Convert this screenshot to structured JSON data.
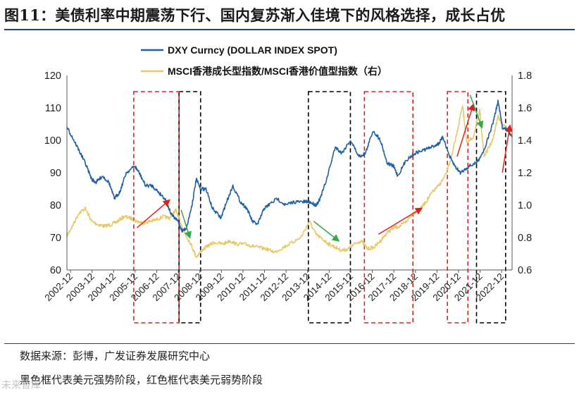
{
  "header": {
    "title": "图11：美债利率中期震荡下行、国内复苏渐入佳境下的风格选择，成长占优"
  },
  "footer": {
    "source": "数据来源：彭博，广发证券发展研究中心",
    "note": "黑色框代表美元强势阶段，红色框代表美元弱势阶段",
    "watermark": "未来智库"
  },
  "colors": {
    "dxy": "#1f5fa6",
    "msci": "#e8c866",
    "strong_box": "#000000",
    "weak_box": "#e0201c",
    "arrow_red": "#e0201c",
    "arrow_green": "#36a84a",
    "rule": "#1f3d7a"
  },
  "chart_data": {
    "type": "line",
    "title": "",
    "xlabel": "",
    "ylabel_left": "",
    "ylabel_right": "",
    "x_range": [
      2002.75,
      2023.4
    ],
    "ylim_left": [
      60,
      120
    ],
    "ylim_right": [
      0.6,
      1.8
    ],
    "left_ticks": [
      "120",
      "110",
      "100",
      "90",
      "80",
      "70",
      "60"
    ],
    "right_ticks": [
      "1.8",
      "1.6",
      "1.4",
      "1.2",
      "1.0",
      "0.8",
      "0.6"
    ],
    "x_tick_labels": [
      "2002-12",
      "2003-12",
      "2004-12",
      "2005-12",
      "2006-12",
      "2007-12",
      "2008-12",
      "2009-12",
      "2010-12",
      "2011-12",
      "2012-12",
      "2013-12",
      "2014-12",
      "2015-12",
      "2016-12",
      "2017-12",
      "2018-12",
      "2019-12",
      "2020-12",
      "2021-12",
      "2022-12"
    ],
    "legend": [
      {
        "name": "DXY Curncy (DOLLAR INDEX SPOT)",
        "axis": "left"
      },
      {
        "name": "MSCI香港成长型指数/MSCI香港价值型指数（右）",
        "axis": "right"
      }
    ],
    "series": [
      {
        "name": "DXY Curncy (DOLLAR INDEX SPOT)",
        "axis": "left",
        "x": [
          2002.75,
          2003.0,
          2003.3,
          2003.6,
          2003.9,
          2004.1,
          2004.4,
          2004.7,
          2004.95,
          2005.2,
          2005.5,
          2005.9,
          2006.1,
          2006.4,
          2006.7,
          2007.0,
          2007.3,
          2007.6,
          2007.9,
          2008.1,
          2008.3,
          2008.55,
          2008.75,
          2008.95,
          2009.2,
          2009.5,
          2009.9,
          2010.1,
          2010.45,
          2010.8,
          2011.1,
          2011.35,
          2011.6,
          2011.9,
          2012.1,
          2012.5,
          2012.9,
          2013.3,
          2013.7,
          2014.0,
          2014.3,
          2014.5,
          2014.8,
          2015.2,
          2015.5,
          2015.9,
          2016.3,
          2016.6,
          2016.95,
          2017.3,
          2017.6,
          2017.9,
          2018.1,
          2018.5,
          2018.9,
          2019.3,
          2019.7,
          2020.0,
          2020.2,
          2020.5,
          2020.75,
          2021.0,
          2021.4,
          2021.75,
          2022.1,
          2022.5,
          2022.75,
          2022.95,
          2023.2,
          2023.4
        ],
        "values": [
          104,
          101,
          97,
          93,
          88,
          87,
          89,
          87,
          82,
          84,
          90,
          92,
          90,
          86,
          86,
          84,
          82,
          77,
          75,
          72,
          73,
          80,
          88,
          85,
          85,
          79,
          76,
          80,
          86,
          81,
          79,
          75,
          74,
          79,
          80,
          82,
          80,
          81,
          81,
          81,
          80,
          82,
          88,
          98,
          96,
          100,
          95,
          96,
          103,
          100,
          93,
          92,
          89,
          94,
          96,
          97,
          98,
          99,
          101,
          95,
          92,
          90,
          92,
          93,
          97,
          105,
          112,
          104,
          103,
          101
        ]
      },
      {
        "name": "MSCI香港成长型指数/MSCI香港价值型指数（右）",
        "axis": "right",
        "x": [
          2002.75,
          2003.0,
          2003.3,
          2003.6,
          2003.9,
          2004.2,
          2004.5,
          2004.8,
          2005.1,
          2005.4,
          2005.7,
          2006.0,
          2006.3,
          2006.6,
          2006.9,
          2007.2,
          2007.5,
          2007.8,
          2007.95,
          2008.2,
          2008.5,
          2008.75,
          2009.0,
          2009.3,
          2009.6,
          2010.0,
          2010.3,
          2010.6,
          2011.0,
          2011.3,
          2011.6,
          2012.0,
          2012.4,
          2012.8,
          2013.2,
          2013.6,
          2014.0,
          2014.3,
          2014.6,
          2014.9,
          2015.2,
          2015.5,
          2015.8,
          2016.1,
          2016.4,
          2016.7,
          2017.0,
          2017.3,
          2017.6,
          2017.9,
          2018.2,
          2018.5,
          2018.8,
          2019.1,
          2019.4,
          2019.7,
          2020.0,
          2020.3,
          2020.6,
          2020.9,
          2021.1,
          2021.3,
          2021.6,
          2021.9,
          2022.1,
          2022.3,
          2022.5,
          2022.75,
          2022.95,
          2023.2,
          2023.4
        ],
        "values": [
          0.81,
          0.87,
          0.95,
          0.98,
          0.9,
          0.88,
          0.87,
          0.88,
          0.9,
          0.93,
          0.92,
          0.9,
          0.89,
          0.9,
          0.91,
          0.93,
          0.92,
          0.97,
          0.92,
          0.83,
          0.76,
          0.68,
          0.72,
          0.75,
          0.77,
          0.76,
          0.78,
          0.76,
          0.76,
          0.75,
          0.74,
          0.73,
          0.71,
          0.74,
          0.77,
          0.8,
          0.9,
          0.82,
          0.79,
          0.76,
          0.74,
          0.72,
          0.73,
          0.76,
          0.78,
          0.73,
          0.74,
          0.78,
          0.83,
          0.86,
          0.87,
          0.9,
          0.95,
          0.97,
          1.02,
          1.08,
          1.12,
          1.18,
          1.3,
          1.48,
          1.62,
          1.38,
          1.42,
          1.58,
          1.3,
          1.35,
          1.4,
          1.55,
          1.5,
          1.46,
          1.42
        ]
      }
    ],
    "annotations": {
      "strong_dollar_periods": [
        [
          2007.95,
          2008.95
        ],
        [
          2013.95,
          2015.9
        ],
        [
          2021.75,
          2023.1
        ]
      ],
      "weak_dollar_periods": [
        [
          2005.85,
          2007.95
        ],
        [
          2016.55,
          2018.8
        ],
        [
          2020.4,
          2021.35
        ]
      ],
      "red_arrows": [
        {
          "from": [
            2006.0,
            0.86
          ],
          "to": [
            2007.5,
            1.03
          ]
        },
        {
          "from": [
            2017.2,
            0.82
          ],
          "to": [
            2019.2,
            0.98
          ]
        },
        {
          "from": [
            2020.85,
            1.3
          ],
          "to": [
            2021.6,
            1.62
          ]
        },
        {
          "from": [
            2022.95,
            1.2
          ],
          "to": [
            2023.3,
            1.49
          ]
        }
      ],
      "green_arrows": [
        {
          "from": [
            2008.05,
            0.97
          ],
          "to": [
            2008.45,
            0.8
          ]
        },
        {
          "from": [
            2014.2,
            0.9
          ],
          "to": [
            2015.35,
            0.78
          ]
        },
        {
          "from": [
            2021.45,
            1.68
          ],
          "to": [
            2022.0,
            1.48
          ]
        }
      ]
    }
  }
}
